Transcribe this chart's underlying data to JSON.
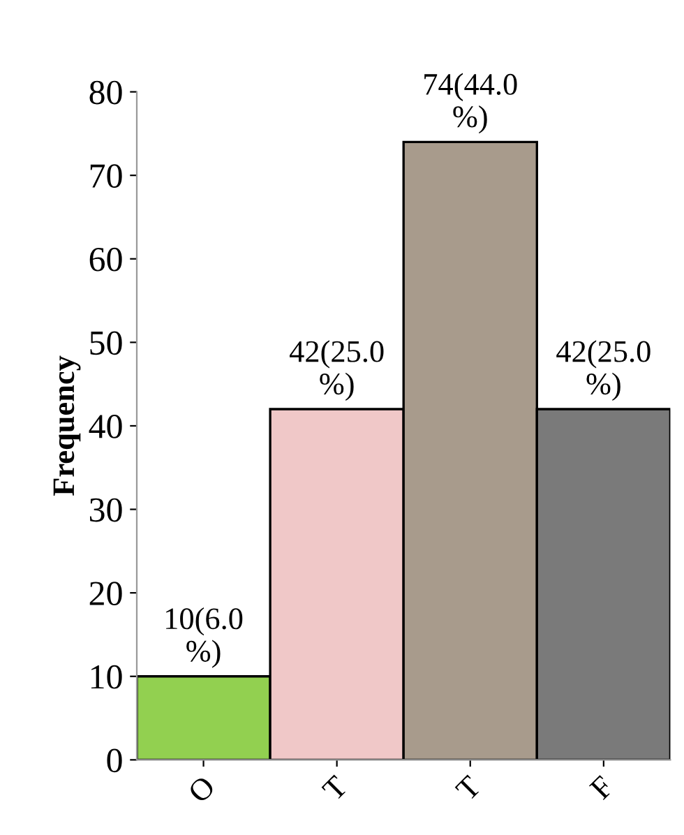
{
  "chart_data": {
    "type": "bar",
    "ylabel": "Frequency",
    "categories": [
      "O",
      "T",
      "T",
      "F"
    ],
    "values": [
      10,
      42,
      74,
      42
    ],
    "colors": [
      "#92d050",
      "#f0c8c8",
      "#a89b8c",
      "#7a7a7a"
    ],
    "value_labels": [
      "10(6.0\n%)",
      "42(25.0\n%)",
      "74(44.0\n%)",
      "42(25.0\n%)"
    ],
    "ylim": [
      0,
      80
    ],
    "yticks": [
      0,
      10,
      20,
      30,
      40,
      50,
      60,
      70,
      80
    ],
    "grid": false
  }
}
